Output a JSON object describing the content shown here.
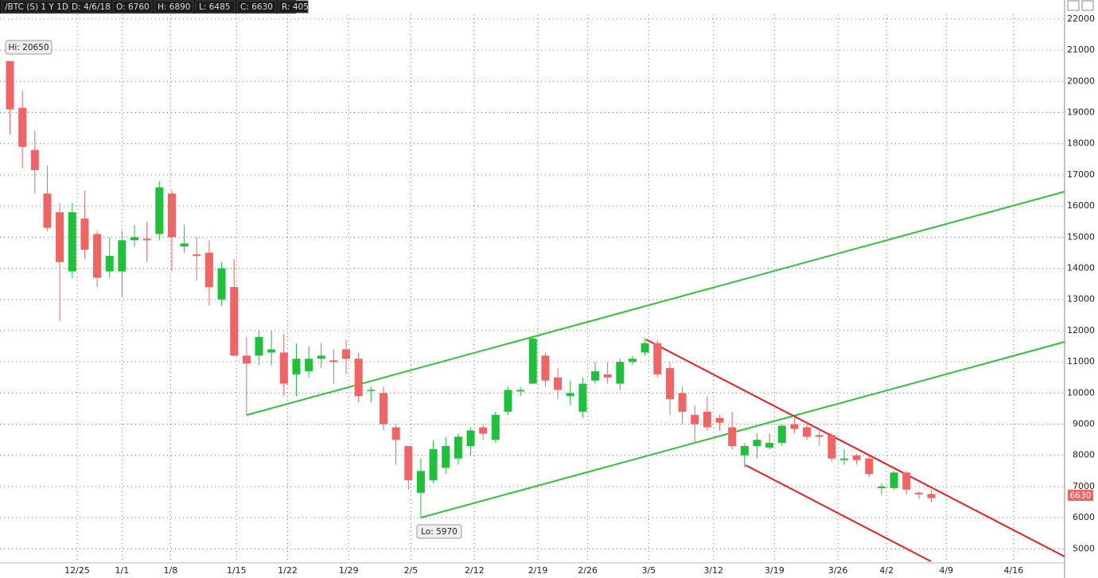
{
  "chart_data": {
    "type": "candlestick",
    "header": [
      "/BTC (S) 1 Y 1D",
      "D: 4/6/18",
      "O: 6760",
      "H: 6890",
      "L: 6485",
      "C: 6630",
      "R: 405"
    ],
    "annotations": [
      "Hi: 20650",
      "Lo: 5970"
    ],
    "price_tag": "6630",
    "up_color": "#1ec23a",
    "down_color": "#f26363",
    "open": [
      20650,
      19150,
      17800,
      16400,
      15800,
      13900,
      15600,
      15100,
      13900,
      13900,
      14900,
      14950,
      15100,
      16400,
      14700,
      14450,
      14500,
      13000,
      13400,
      11200,
      11200,
      11300,
      11300,
      10600,
      10700,
      11100,
      11050,
      11400,
      11100,
      10100,
      10000,
      8900,
      8300,
      6800,
      7200,
      7600,
      7900,
      8300,
      8900,
      8500,
      9400,
      10050,
      10300,
      11200,
      10500,
      9900,
      9400,
      10400,
      10600,
      10300,
      11000,
      11300,
      11600,
      10800,
      10000,
      9300,
      9400,
      9200,
      8900,
      8000,
      8300,
      8250,
      8400,
      9000,
      8900,
      8650,
      8650,
      7850,
      8000,
      7900,
      6950,
      6950,
      7450,
      6800,
      6760
    ],
    "high": [
      20650,
      19700,
      18400,
      17300,
      16100,
      16100,
      16500,
      15200,
      15000,
      15200,
      15400,
      15500,
      16800,
      16500,
      15400,
      15000,
      14900,
      14200,
      14300,
      11800,
      12000,
      12000,
      11900,
      11600,
      11500,
      11600,
      11400,
      11700,
      11300,
      10200,
      10200,
      9000,
      8300,
      7900,
      8500,
      8600,
      8700,
      8900,
      9000,
      9400,
      10200,
      10200,
      11800,
      11300,
      10800,
      10400,
      10500,
      11000,
      11000,
      11100,
      11200,
      11750,
      11700,
      11000,
      10200,
      9600,
      9900,
      9300,
      9400,
      8400,
      8700,
      8700,
      9000,
      9200,
      9100,
      8800,
      8700,
      8200,
      8050,
      8000,
      7100,
      7500,
      7500,
      6850,
      6890
    ],
    "low": [
      18300,
      17200,
      16400,
      15200,
      12300,
      13700,
      14300,
      13400,
      13700,
      13100,
      14700,
      14200,
      14900,
      13900,
      14500,
      13600,
      12800,
      12800,
      11200,
      9300,
      10900,
      10900,
      9900,
      9900,
      10500,
      10800,
      10300,
      10600,
      9700,
      9700,
      8800,
      7700,
      6900,
      5970,
      7100,
      7400,
      7700,
      8000,
      8500,
      8400,
      9300,
      9900,
      10300,
      10200,
      9800,
      9600,
      9200,
      10300,
      10300,
      10100,
      10900,
      11200,
      10500,
      9300,
      9000,
      8400,
      8800,
      8800,
      8200,
      7600,
      7900,
      8200,
      8300,
      8700,
      8500,
      8300,
      7800,
      7700,
      7700,
      7300,
      6750,
      6900,
      6750,
      6600,
      6485
    ],
    "close": [
      19100,
      17900,
      17150,
      15300,
      14200,
      15800,
      14600,
      13700,
      14400,
      14900,
      15000,
      14900,
      16600,
      15000,
      14800,
      14400,
      13400,
      14000,
      11200,
      10950,
      11800,
      11400,
      10300,
      11100,
      11100,
      11200,
      11000,
      11100,
      9900,
      10100,
      9000,
      8500,
      7200,
      7500,
      8200,
      8300,
      8600,
      8800,
      8700,
      9300,
      10100,
      10100,
      11750,
      10400,
      10100,
      10000,
      10300,
      10700,
      10500,
      11000,
      11100,
      11600,
      10600,
      9800,
      9400,
      9000,
      8900,
      9050,
      8300,
      8300,
      8500,
      8400,
      8950,
      8850,
      8600,
      8600,
      7900,
      7900,
      7850,
      7400,
      7000,
      7450,
      6900,
      6750,
      6630
    ],
    "xlim": [
      -0.8,
      84.7
    ],
    "xticks": [
      {
        "value": 5.4,
        "label": "12/25"
      },
      {
        "value": 9.0,
        "label": "1/1"
      },
      {
        "value": 12.9,
        "label": "1/8"
      },
      {
        "value": 18.2,
        "label": "1/15"
      },
      {
        "value": 22.3,
        "label": "1/22"
      },
      {
        "value": 27.2,
        "label": "1/29"
      },
      {
        "value": 32.2,
        "label": "2/5"
      },
      {
        "value": 37.3,
        "label": "2/12"
      },
      {
        "value": 42.4,
        "label": "2/19"
      },
      {
        "value": 46.4,
        "label": "2/26"
      },
      {
        "value": 51.3,
        "label": "3/5"
      },
      {
        "value": 56.5,
        "label": "3/12"
      },
      {
        "value": 61.4,
        "label": "3/19"
      },
      {
        "value": 66.5,
        "label": "3/26"
      },
      {
        "value": 70.4,
        "label": "4/2"
      },
      {
        "value": 75.2,
        "label": "4/9"
      },
      {
        "value": 80.6,
        "label": "4/16"
      }
    ],
    "ylim": [
      4550,
      22150
    ],
    "yticks": [
      5000,
      6000,
      7000,
      8000,
      9000,
      10000,
      11000,
      12000,
      13000,
      14000,
      15000,
      16000,
      17000,
      18000,
      19000,
      20000,
      21000,
      22000
    ],
    "grid": true
  }
}
